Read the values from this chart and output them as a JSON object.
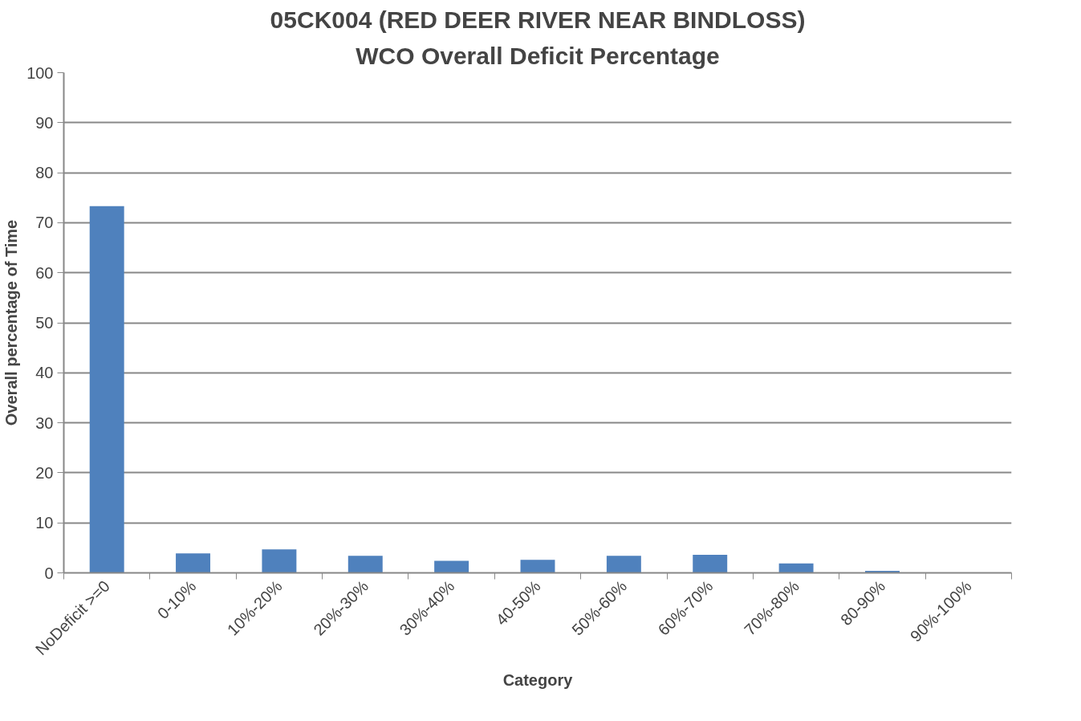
{
  "chart_data": {
    "type": "bar",
    "title": "05CK004 (RED DEER RIVER NEAR BINDLOSS)",
    "subtitle": "WCO Overall Deficit Percentage",
    "xlabel": "Category",
    "ylabel": "Overall percentage of Time",
    "categories": [
      "NoDeficit >=0",
      "0-10%",
      "10%-20%",
      "20%-30%",
      "30%-40%",
      "40-50%",
      "50%-60%",
      "60%-70%",
      "70%-80%",
      "80-90%",
      "90%-100%"
    ],
    "values": [
      73.3,
      3.9,
      4.7,
      3.4,
      2.4,
      2.6,
      3.4,
      3.6,
      1.9,
      0.4,
      0
    ],
    "color": "#4f81bd",
    "ylim": [
      0,
      100
    ],
    "yticks": [
      0,
      10,
      20,
      30,
      40,
      50,
      60,
      70,
      80,
      90,
      100
    ],
    "grid": "y"
  }
}
